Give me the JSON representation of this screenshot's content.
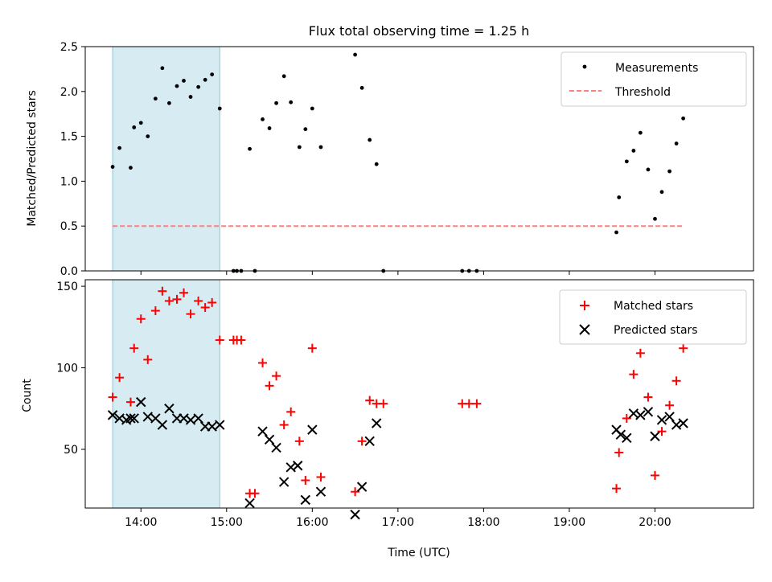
{
  "title": "Flux total observing time = 1.25 h",
  "chart_data": [
    {
      "type": "scatter",
      "ylabel": "Matched/Predicted stars",
      "xlim": [
        13.35,
        21.15
      ],
      "ylim": [
        0,
        2.5
      ],
      "yticks": [
        "0.0",
        "0.5",
        "1.0",
        "1.5",
        "2.0",
        "2.5"
      ],
      "highlight_span": [
        13.67,
        14.92
      ],
      "threshold": 0.5,
      "threshold_range": [
        13.67,
        20.33
      ],
      "legend": {
        "position": "top-right",
        "entries": [
          "Measurements",
          "Threshold"
        ]
      },
      "series": [
        {
          "name": "Measurements",
          "x": [
            13.67,
            13.75,
            13.88,
            13.92,
            14.0,
            14.08,
            14.17,
            14.25,
            14.33,
            14.42,
            14.5,
            14.58,
            14.67,
            14.75,
            14.83,
            14.92,
            15.08,
            15.12,
            15.17,
            15.27,
            15.33,
            15.42,
            15.5,
            15.58,
            15.67,
            15.75,
            15.85,
            15.92,
            16.0,
            16.1,
            16.5,
            16.58,
            16.67,
            16.75,
            16.83,
            17.75,
            17.83,
            17.92,
            19.55,
            19.58,
            19.67,
            19.75,
            19.83,
            19.92,
            20.0,
            20.08,
            20.17,
            20.25,
            20.33
          ],
          "y": [
            1.16,
            1.37,
            1.15,
            1.6,
            1.65,
            1.5,
            1.92,
            2.26,
            1.87,
            2.06,
            2.12,
            1.94,
            2.05,
            2.13,
            2.19,
            1.81,
            0.0,
            0.0,
            0.0,
            1.36,
            0.0,
            1.69,
            1.59,
            1.87,
            2.17,
            1.88,
            1.38,
            1.58,
            1.81,
            1.38,
            2.41,
            2.04,
            1.46,
            1.19,
            0.0,
            0.0,
            0.0,
            0.0,
            0.43,
            0.82,
            1.22,
            1.34,
            1.54,
            1.13,
            0.58,
            0.88,
            1.11,
            1.42,
            1.7
          ]
        }
      ]
    },
    {
      "type": "scatter",
      "xlabel": "Time (UTC)",
      "ylabel": "Count",
      "xlim": [
        13.35,
        21.15
      ],
      "ylim": [
        14,
        154
      ],
      "yticks": [
        "50",
        "100",
        "150"
      ],
      "xticks": [
        "14:00",
        "15:00",
        "16:00",
        "17:00",
        "18:00",
        "19:00",
        "20:00"
      ],
      "highlight_span": [
        13.67,
        14.92
      ],
      "legend": {
        "position": "top-right",
        "entries": [
          "Matched stars",
          "Predicted stars"
        ]
      },
      "series": [
        {
          "name": "Matched stars",
          "x": [
            13.67,
            13.75,
            13.88,
            13.92,
            14.0,
            14.08,
            14.17,
            14.25,
            14.33,
            14.42,
            14.5,
            14.58,
            14.67,
            14.75,
            14.83,
            14.92,
            15.08,
            15.12,
            15.17,
            15.27,
            15.33,
            15.42,
            15.5,
            15.58,
            15.67,
            15.75,
            15.85,
            15.92,
            16.0,
            16.1,
            16.5,
            16.58,
            16.67,
            16.75,
            16.83,
            17.75,
            17.83,
            17.92,
            19.55,
            19.58,
            19.67,
            19.75,
            19.83,
            19.92,
            20.0,
            20.08,
            20.17,
            20.25,
            20.33
          ],
          "y": [
            82,
            94,
            79,
            112,
            130,
            105,
            135,
            147,
            141,
            142,
            146,
            133,
            141,
            137,
            140,
            117,
            117,
            117,
            117,
            23,
            23,
            103,
            89,
            95,
            65,
            73,
            55,
            31,
            112,
            33,
            24,
            55,
            80,
            78,
            78,
            78,
            78,
            78,
            26,
            48,
            69,
            96,
            109,
            82,
            34,
            61,
            77,
            92,
            112
          ]
        },
        {
          "name": "Predicted stars",
          "x": [
            13.67,
            13.75,
            13.83,
            13.88,
            13.92,
            14.0,
            14.08,
            14.17,
            14.25,
            14.33,
            14.42,
            14.5,
            14.58,
            14.67,
            14.75,
            14.83,
            14.92,
            15.27,
            15.42,
            15.5,
            15.58,
            15.67,
            15.75,
            15.83,
            15.92,
            16.0,
            16.1,
            16.5,
            16.58,
            16.67,
            16.75,
            19.55,
            19.6,
            19.67,
            19.75,
            19.83,
            19.92,
            20.0,
            20.08,
            20.17,
            20.25,
            20.33
          ],
          "y": [
            71,
            69,
            68,
            69,
            69,
            79,
            70,
            69,
            65,
            75,
            69,
            69,
            68,
            69,
            64,
            64,
            65,
            17,
            61,
            56,
            51,
            30,
            39,
            40,
            19,
            62,
            24,
            10,
            27,
            55,
            66,
            62,
            59,
            57,
            72,
            71,
            73,
            58,
            68,
            70,
            65,
            66
          ]
        }
      ]
    }
  ]
}
